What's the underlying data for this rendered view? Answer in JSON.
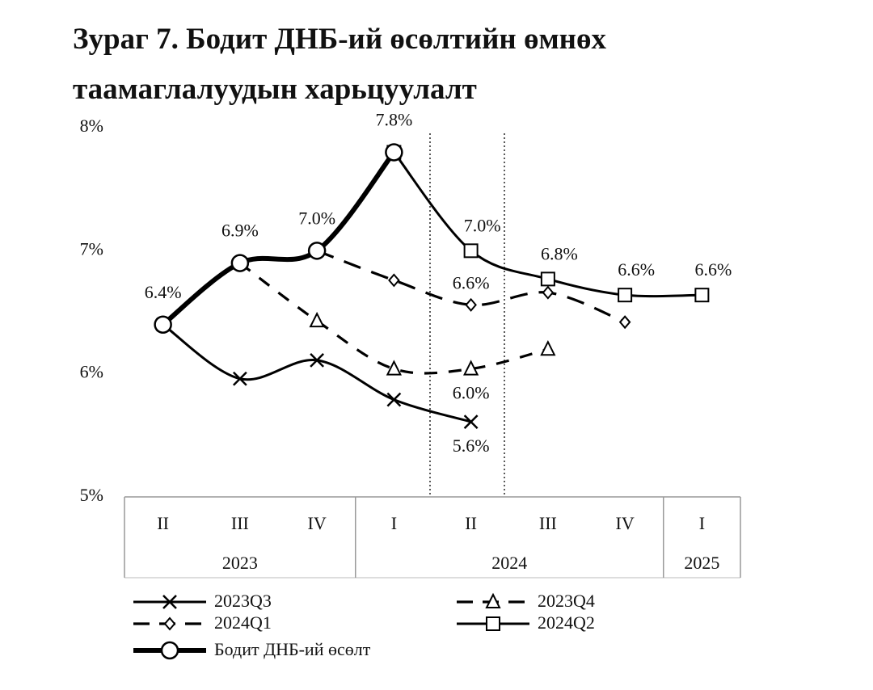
{
  "chart_data": {
    "type": "line",
    "title": "Зураг 7. Бодит ДНБ-ий өсөлтийн өмнөх таамаглалуудын харьцуулалт",
    "categories": [
      "II",
      "III",
      "IV",
      "I",
      "II",
      "III",
      "IV",
      "I"
    ],
    "category_years": [
      "2023",
      "2023",
      "2023",
      "2024",
      "2024",
      "2024",
      "2024",
      "2025"
    ],
    "ylim": [
      5,
      8
    ],
    "yticks": [
      {
        "value": 5,
        "label": "5%"
      },
      {
        "value": 6,
        "label": "6%"
      },
      {
        "value": 7,
        "label": "7%"
      },
      {
        "value": 8,
        "label": "8%"
      }
    ],
    "series": [
      {
        "name": "2023Q3",
        "color": "#000000",
        "marker": "x",
        "dash": "solid",
        "values": [
          6.4,
          5.96,
          6.11,
          5.79,
          5.61,
          null,
          null,
          null
        ],
        "value_labels": [
          null,
          null,
          null,
          null,
          "5.6%",
          null,
          null,
          null
        ]
      },
      {
        "name": "2023Q4",
        "color": "#000000",
        "marker": "triangle",
        "dash": "dashed",
        "values": [
          null,
          6.9,
          6.43,
          6.04,
          6.04,
          6.2,
          null,
          null
        ],
        "value_labels": [
          null,
          null,
          null,
          null,
          "6.0%",
          null,
          null,
          null
        ]
      },
      {
        "name": "2024Q1",
        "color": "#000000",
        "marker": "diamond",
        "dash": "long-dashed",
        "values": [
          null,
          null,
          7.0,
          6.76,
          6.56,
          6.66,
          6.42,
          null
        ],
        "value_labels": [
          null,
          null,
          null,
          null,
          "6.6%",
          null,
          null,
          null
        ]
      },
      {
        "name": "2024Q2",
        "color": "#000000",
        "marker": "square",
        "dash": "solid",
        "values": [
          null,
          null,
          null,
          7.8,
          7.0,
          6.77,
          6.64,
          6.64
        ],
        "value_labels": [
          null,
          null,
          null,
          null,
          "7.0%",
          "6.8%",
          "6.6%",
          "6.6%"
        ]
      },
      {
        "name": "Бодит ДНБ-ий өсөлт",
        "color": "#000000",
        "marker": "circle",
        "dash": "thick",
        "values": [
          6.4,
          6.9,
          7.0,
          7.8,
          null,
          null,
          null,
          null
        ],
        "value_labels": [
          "6.4%",
          "6.9%",
          "7.0%",
          "7.8%",
          null,
          null,
          null,
          null
        ]
      }
    ]
  }
}
